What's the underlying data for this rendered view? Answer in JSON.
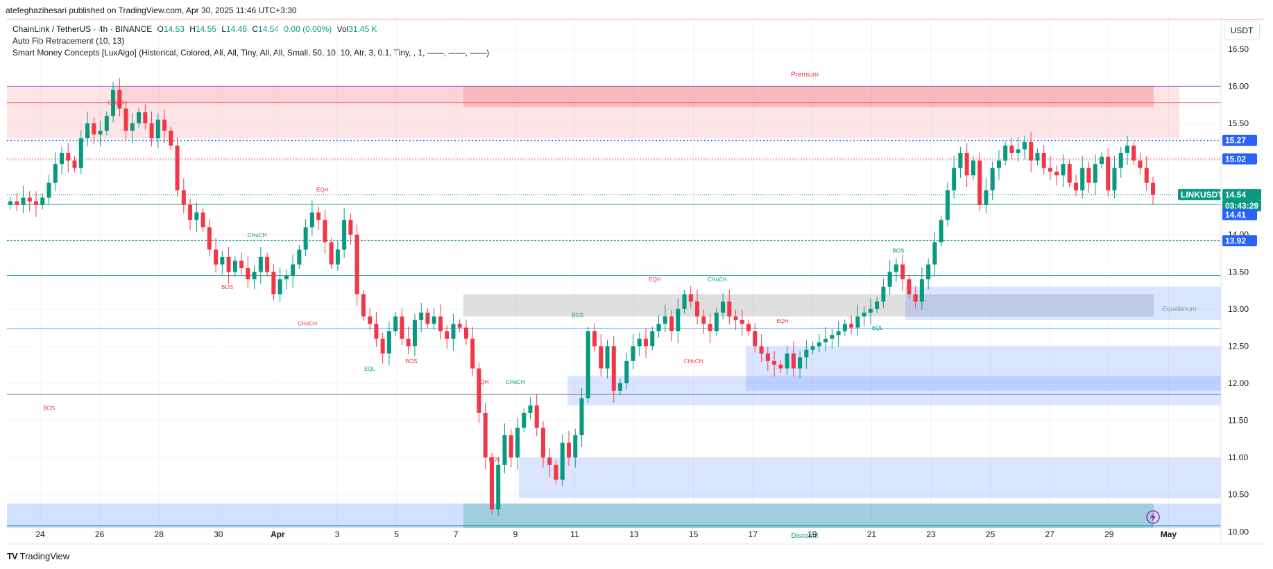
{
  "publisher": "atefeghazihesari published on TradingView.com, Apr 30, 2025 11:46 UTC+3:30",
  "legend": {
    "symbol": "ChainLink / TetherUS · 4h · BINANCE",
    "o_label": "O",
    "o_value": "14.53",
    "h_label": "H",
    "h_value": "14.55",
    "l_label": "L",
    "l_value": "14.46",
    "c_label": "C",
    "c_value": "14.54",
    "change": "0.00 (0.00%)",
    "vol_label": "Vol",
    "vol_value": "31.45 K",
    "indicator1": "Auto Fib Retracement (10, 13)",
    "indicator2": "Smart Money Concepts [LuxAlgo] (Historical, Colored, All, All, Tiny, All, All, Small, 50, 10, 10, Atr, 3, 0.1, Tiny, , 1, ——, ——, ——)"
  },
  "currency": "USDT",
  "footer": {
    "logo_text": "TradingView",
    "logo_mark": "TV"
  },
  "colors": {
    "up": "#089981",
    "down": "#f23645",
    "fib_blue": "#2962ff",
    "premium": "#f23645",
    "discount": "#089981"
  },
  "chart_data": {
    "type": "candlestick",
    "title": "ChainLink / TetherUS · 4h · BINANCE",
    "ylim": [
      9.9,
      16.9
    ],
    "y_ticks": [
      "16.50",
      "16.00",
      "15.50",
      "15.00",
      "14.50",
      "14.00",
      "13.50",
      "13.00",
      "12.50",
      "12.00",
      "11.50",
      "11.00",
      "10.50",
      "10.00"
    ],
    "x_labels": [
      {
        "label": "24",
        "day": 0
      },
      {
        "label": "26",
        "day": 2
      },
      {
        "label": "28",
        "day": 4
      },
      {
        "label": "30",
        "day": 6
      },
      {
        "label": "Apr",
        "day": 8
      },
      {
        "label": "3",
        "day": 10
      },
      {
        "label": "5",
        "day": 12
      },
      {
        "label": "7",
        "day": 14
      },
      {
        "label": "9",
        "day": 16
      },
      {
        "label": "11",
        "day": 18
      },
      {
        "label": "13",
        "day": 20
      },
      {
        "label": "15",
        "day": 22
      },
      {
        "label": "17",
        "day": 24
      },
      {
        "label": "19",
        "day": 26
      },
      {
        "label": "21",
        "day": 28
      },
      {
        "label": "23",
        "day": 30
      },
      {
        "label": "25",
        "day": 32
      },
      {
        "label": "27",
        "day": 34
      },
      {
        "label": "29",
        "day": 36
      },
      {
        "label": "May",
        "day": 38
      }
    ],
    "closes": [
      14.45,
      14.4,
      14.5,
      14.45,
      14.4,
      14.5,
      14.7,
      14.95,
      15.1,
      15.0,
      14.9,
      15.3,
      15.5,
      15.35,
      15.4,
      15.6,
      15.95,
      15.7,
      15.4,
      15.5,
      15.65,
      15.5,
      15.3,
      15.55,
      15.4,
      15.2,
      14.6,
      14.4,
      14.2,
      14.3,
      14.1,
      13.8,
      13.6,
      13.7,
      13.5,
      13.65,
      13.55,
      13.4,
      13.5,
      13.7,
      13.5,
      13.2,
      13.4,
      13.45,
      13.6,
      13.8,
      14.1,
      14.3,
      14.2,
      13.9,
      13.6,
      13.8,
      14.2,
      14.0,
      13.2,
      12.9,
      12.8,
      12.6,
      12.4,
      12.7,
      12.9,
      12.6,
      12.5,
      12.85,
      12.95,
      12.8,
      12.9,
      12.7,
      12.6,
      12.8,
      12.75,
      12.6,
      12.2,
      11.6,
      11.0,
      10.3,
      10.9,
      11.3,
      11.0,
      11.4,
      11.6,
      11.7,
      11.4,
      11.0,
      10.9,
      10.7,
      11.2,
      11.0,
      11.3,
      11.8,
      12.7,
      12.5,
      12.2,
      12.5,
      11.9,
      12.0,
      12.3,
      12.5,
      12.6,
      12.5,
      12.7,
      12.8,
      12.9,
      12.7,
      13.0,
      13.2,
      13.1,
      12.9,
      12.8,
      12.7,
      12.95,
      13.1,
      12.9,
      12.85,
      12.8,
      12.7,
      12.5,
      12.4,
      12.3,
      12.25,
      12.2,
      12.4,
      12.2,
      12.35,
      12.45,
      12.5,
      12.55,
      12.6,
      12.65,
      12.7,
      12.8,
      12.75,
      12.9,
      12.95,
      13.0,
      13.1,
      13.3,
      13.5,
      13.6,
      13.4,
      13.2,
      13.1,
      13.4,
      13.6,
      13.9,
      14.2,
      14.6,
      14.9,
      15.1,
      14.8,
      15.0,
      14.4,
      14.6,
      14.9,
      15.0,
      15.2,
      15.1,
      15.15,
      15.25,
      15.0,
      15.1,
      14.9,
      14.85,
      14.8,
      14.95,
      14.7,
      14.6,
      14.9,
      14.7,
      14.95,
      15.05,
      14.6,
      14.9,
      15.1,
      15.2,
      15.0,
      14.9,
      14.7,
      14.54
    ],
    "legend_ohlc": {
      "open": 14.53,
      "high": 14.55,
      "low": 14.46,
      "close": 14.54
    },
    "price_tags": [
      {
        "label": "15.27",
        "value": 15.27,
        "color": "#2962ff"
      },
      {
        "label": "15.02",
        "value": 15.02,
        "color": "#2962ff"
      },
      {
        "label": "LINKUSDT",
        "value": 14.54,
        "color": "#089981"
      },
      {
        "label": "14.54",
        "value": 14.54,
        "color": "#089981"
      },
      {
        "label": "03:43:29",
        "value": 14.54,
        "color": "#089981"
      },
      {
        "label": "14.41",
        "value": 14.41,
        "color": "#2962ff"
      },
      {
        "label": "13.92",
        "value": 13.92,
        "color": "#2962ff"
      }
    ],
    "zones": {
      "premium_label": "Premium",
      "premium_range": [
        15.3,
        16.0
      ],
      "equilibrium_label": "Equilibrium",
      "equilibrium_range": [
        12.9,
        13.2
      ],
      "discount_label": "Discount",
      "discount_range": [
        10.05,
        10.38
      ]
    },
    "smc_labels": [
      {
        "text": "CHoCH",
        "day": 2.6,
        "price": 15.75,
        "color": "#f23645"
      },
      {
        "text": "EQH",
        "day": 9.5,
        "price": 14.58,
        "color": "#f23645"
      },
      {
        "text": "CHoCH",
        "day": 7.3,
        "price": 13.97,
        "color": "#089981"
      },
      {
        "text": "BOS",
        "day": 6.3,
        "price": 13.27,
        "color": "#f23645"
      },
      {
        "text": "CHoCH",
        "day": 9.0,
        "price": 12.78,
        "color": "#f23645"
      },
      {
        "text": "EQL",
        "day": 11.1,
        "price": 12.17,
        "color": "#089981"
      },
      {
        "text": "BOS",
        "day": 12.5,
        "price": 12.27,
        "color": "#f23645"
      },
      {
        "text": "BOS",
        "day": 0.3,
        "price": 11.64,
        "color": "#f23645"
      },
      {
        "text": "EQH",
        "day": 14.9,
        "price": 11.99,
        "color": "#f23645"
      },
      {
        "text": "CHoCH",
        "day": 16.0,
        "price": 11.99,
        "color": "#089981"
      },
      {
        "text": "BOS",
        "day": 15.3,
        "price": 10.95,
        "color": "#f23645"
      },
      {
        "text": "BOS",
        "day": 18.1,
        "price": 12.89,
        "color": "#089981"
      },
      {
        "text": "EQH",
        "day": 20.7,
        "price": 13.37,
        "color": "#f23645"
      },
      {
        "text": "CHoCH",
        "day": 22.8,
        "price": 13.37,
        "color": "#089981"
      },
      {
        "text": "CHoCH",
        "day": 22.0,
        "price": 12.27,
        "color": "#f23645"
      },
      {
        "text": "EQH",
        "day": 25.0,
        "price": 12.81,
        "color": "#f23645"
      },
      {
        "text": "EQL",
        "day": 28.2,
        "price": 12.72,
        "color": "#089981"
      },
      {
        "text": "BOS",
        "day": 28.9,
        "price": 13.76,
        "color": "#089981"
      }
    ]
  }
}
